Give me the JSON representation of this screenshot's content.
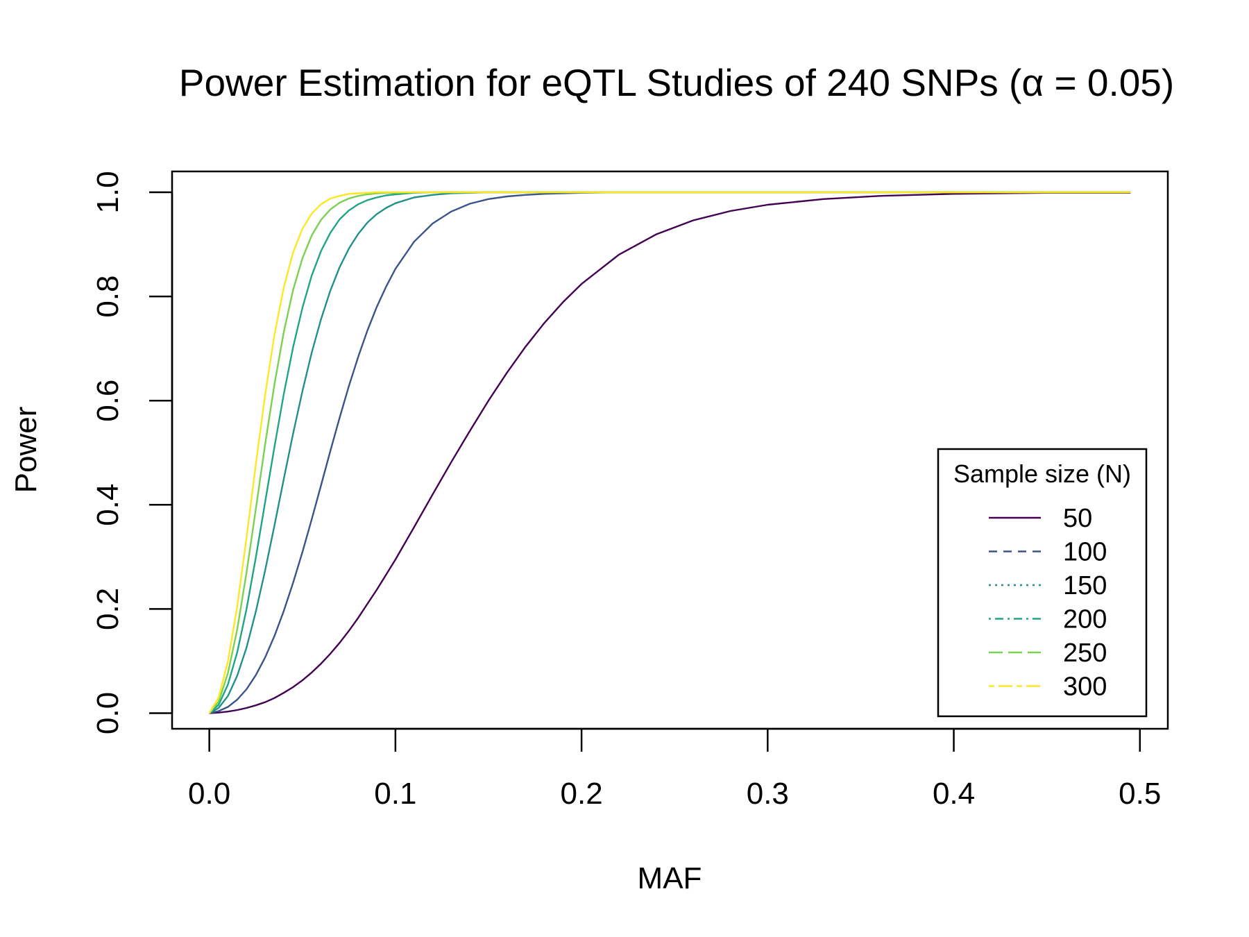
{
  "chart_data": {
    "type": "line",
    "title": "Power Estimation for eQTL Studies of 240 SNPs (α = 0.05)",
    "xlabel": "MAF",
    "ylabel": "Power",
    "xlim": [
      -0.02,
      0.515
    ],
    "ylim": [
      -0.03,
      1.04
    ],
    "xticks": [
      "0.0",
      "0.1",
      "0.2",
      "0.3",
      "0.4",
      "0.5"
    ],
    "yticks": [
      "0.0",
      "0.2",
      "0.4",
      "0.6",
      "0.8",
      "1.0"
    ],
    "grid": false,
    "legend": {
      "title": "Sample size (N)",
      "placement": "bottom-right"
    },
    "x": [
      0,
      0.005,
      0.01,
      0.015,
      0.02,
      0.025,
      0.03,
      0.035,
      0.04,
      0.045,
      0.05,
      0.055,
      0.06,
      0.065,
      0.07,
      0.075,
      0.08,
      0.085,
      0.09,
      0.095,
      0.1,
      0.11,
      0.12,
      0.13,
      0.14,
      0.15,
      0.16,
      0.17,
      0.18,
      0.19,
      0.2,
      0.22,
      0.24,
      0.26,
      0.28,
      0.3,
      0.33,
      0.36,
      0.4,
      0.45,
      0.495
    ],
    "series": [
      {
        "name": "50",
        "color": "#440154",
        "dash": "solid",
        "values": [
          0.0,
          0.001,
          0.003,
          0.006,
          0.01,
          0.015,
          0.021,
          0.029,
          0.039,
          0.05,
          0.063,
          0.078,
          0.095,
          0.114,
          0.135,
          0.158,
          0.183,
          0.21,
          0.237,
          0.266,
          0.295,
          0.357,
          0.42,
          0.482,
          0.542,
          0.6,
          0.654,
          0.704,
          0.749,
          0.789,
          0.824,
          0.88,
          0.919,
          0.946,
          0.964,
          0.976,
          0.987,
          0.993,
          0.997,
          0.999,
          0.999
        ]
      },
      {
        "name": "100",
        "color": "#3B528B",
        "dash": "dashed",
        "values": [
          0.0,
          0.004,
          0.012,
          0.026,
          0.046,
          0.073,
          0.107,
          0.148,
          0.196,
          0.25,
          0.309,
          0.372,
          0.437,
          0.503,
          0.567,
          0.628,
          0.684,
          0.735,
          0.78,
          0.819,
          0.853,
          0.905,
          0.94,
          0.963,
          0.978,
          0.987,
          0.992,
          0.995,
          0.997,
          0.998,
          0.999,
          1.0,
          1.0,
          1.0,
          1.0,
          1.0,
          1.0,
          1.0,
          1.0,
          1.0,
          1.0
        ]
      },
      {
        "name": "150",
        "color": "#21908C",
        "dash": "dotted",
        "values": [
          0.0,
          0.01,
          0.033,
          0.072,
          0.126,
          0.195,
          0.274,
          0.36,
          0.449,
          0.536,
          0.618,
          0.692,
          0.756,
          0.811,
          0.856,
          0.892,
          0.92,
          0.942,
          0.958,
          0.97,
          0.979,
          0.99,
          0.995,
          0.998,
          0.999,
          1.0,
          1.0,
          1.0,
          1.0,
          1.0,
          1.0,
          1.0,
          1.0,
          1.0,
          1.0,
          1.0,
          1.0,
          1.0,
          1.0,
          1.0,
          1.0
        ]
      },
      {
        "name": "200",
        "color": "#20A486",
        "dash": "dotdash",
        "values": [
          0.0,
          0.016,
          0.055,
          0.117,
          0.2,
          0.299,
          0.405,
          0.511,
          0.612,
          0.702,
          0.778,
          0.84,
          0.887,
          0.922,
          0.948,
          0.965,
          0.977,
          0.985,
          0.99,
          0.994,
          0.996,
          0.999,
          1.0,
          1.0,
          1.0,
          1.0,
          1.0,
          1.0,
          1.0,
          1.0,
          1.0,
          1.0,
          1.0,
          1.0,
          1.0,
          1.0,
          1.0,
          1.0,
          1.0,
          1.0,
          1.0
        ]
      },
      {
        "name": "250",
        "color": "#7AD151",
        "dash": "longdash",
        "values": [
          0.0,
          0.022,
          0.077,
          0.161,
          0.27,
          0.392,
          0.516,
          0.631,
          0.731,
          0.812,
          0.873,
          0.917,
          0.947,
          0.967,
          0.98,
          0.988,
          0.993,
          0.996,
          0.998,
          0.999,
          0.999,
          1.0,
          1.0,
          1.0,
          1.0,
          1.0,
          1.0,
          1.0,
          1.0,
          1.0,
          1.0,
          1.0,
          1.0,
          1.0,
          1.0,
          1.0,
          1.0,
          1.0,
          1.0,
          1.0,
          1.0
        ]
      },
      {
        "name": "300",
        "color": "#FDE725",
        "dash": "twodash",
        "values": [
          0.0,
          0.03,
          0.1,
          0.205,
          0.337,
          0.478,
          0.611,
          0.726,
          0.817,
          0.884,
          0.93,
          0.959,
          0.977,
          0.988,
          0.993,
          0.997,
          0.998,
          0.999,
          1.0,
          1.0,
          1.0,
          1.0,
          1.0,
          1.0,
          1.0,
          1.0,
          1.0,
          1.0,
          1.0,
          1.0,
          1.0,
          1.0,
          1.0,
          1.0,
          1.0,
          1.0,
          1.0,
          1.0,
          1.0,
          1.0,
          1.0
        ]
      }
    ]
  }
}
